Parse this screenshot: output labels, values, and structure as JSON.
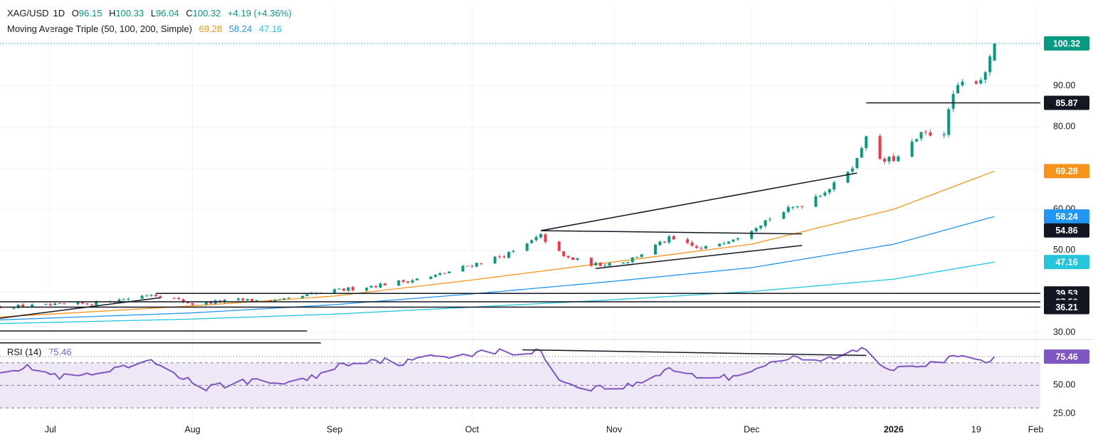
{
  "header": {
    "symbol": "XAG/USD",
    "interval": "1D",
    "open_label": "O",
    "open": "96.15",
    "high_label": "H",
    "high": "100.33",
    "low_label": "L",
    "low": "96.04",
    "close_label": "C",
    "close": "100.32",
    "change": "+4.19 (+4.36%)"
  },
  "ma_legend": {
    "name": "Moving Average Triple (50, 100, 200, Simple)",
    "ma50": "69.28",
    "ma100": "58.24",
    "ma200": "47.16"
  },
  "rsi_legend": {
    "name": "RSI (14)",
    "value": "75.46"
  },
  "colors": {
    "up": "#089981",
    "down": "#f23645",
    "ma50": "#f7931a",
    "ma100": "#2196f3",
    "ma200": "#26c6da",
    "rsi": "#7e57c2",
    "rsi_band": "#ede7f6",
    "trendline": "#131722",
    "badge_dark": "#131722"
  },
  "chart_data": [
    {
      "type": "candlestick",
      "symbol": "XAG/USD",
      "y_ticks": [
        30,
        40,
        50,
        60,
        70,
        80,
        90,
        100
      ],
      "y_tick_labels": [
        "30.00",
        "40.00",
        "50.00",
        "60.00",
        "70.00",
        "80.00",
        "90.00",
        "100.00"
      ],
      "y_ticks_shown": [
        "30.00",
        "50.00",
        "60.00",
        "80.00",
        "90.00"
      ],
      "ylim": [
        28.5,
        109.5
      ],
      "x_labels": [
        "Jul",
        "Aug",
        "Sep",
        "Oct",
        "Nov",
        "Dec",
        "2026",
        "19",
        "Feb"
      ],
      "x_label_dates": [
        "2025-07-01",
        "2025-08-01",
        "2025-09-01",
        "2025-10-01",
        "2025-11-01",
        "2025-12-01",
        "2026-01-01",
        "2026-01-19",
        "2026-02-01"
      ],
      "xlim": [
        "2025-06-20",
        "2026-02-02"
      ],
      "price_series": [
        [
          "2025-06-20",
          36.3
        ],
        [
          "2025-07-01",
          36.6
        ],
        [
          "2025-07-10",
          37.1
        ],
        [
          "2025-07-18",
          38.3
        ],
        [
          "2025-07-23",
          39.4
        ],
        [
          "2025-07-28",
          38.2
        ],
        [
          "2025-08-01",
          37.0
        ],
        [
          "2025-08-11",
          37.9
        ],
        [
          "2025-08-20",
          37.7
        ],
        [
          "2025-08-29",
          39.7
        ],
        [
          "2025-09-10",
          41.5
        ],
        [
          "2025-09-22",
          43.5
        ],
        [
          "2025-10-01",
          46.5
        ],
        [
          "2025-10-10",
          49.5
        ],
        [
          "2025-10-16",
          53.5
        ],
        [
          "2025-10-21",
          48.4
        ],
        [
          "2025-10-28",
          46.5
        ],
        [
          "2025-11-04",
          47.5
        ],
        [
          "2025-11-13",
          52.8
        ],
        [
          "2025-11-20",
          50.2
        ],
        [
          "2025-11-28",
          53.5
        ],
        [
          "2025-12-05",
          57.9
        ],
        [
          "2025-12-12",
          61.3
        ],
        [
          "2025-12-19",
          65.8
        ],
        [
          "2025-12-24",
          72.0
        ],
        [
          "2025-12-26",
          78.5
        ],
        [
          "2025-12-29",
          71.5
        ],
        [
          "2026-01-02",
          72.5
        ],
        [
          "2026-01-07",
          78.0
        ],
        [
          "2026-01-12",
          79.0
        ],
        [
          "2026-01-14",
          88.0
        ],
        [
          "2026-01-16",
          90.5
        ],
        [
          "2026-01-20",
          91.8
        ],
        [
          "2026-01-22",
          96.1
        ],
        [
          "2026-01-23",
          100.32
        ]
      ],
      "last_bar": {
        "open": 96.15,
        "high": 100.33,
        "low": 96.04,
        "close": 100.32
      },
      "series": [
        {
          "name": "SMA 50",
          "values": [
            [
              "2025-06-20",
              33.8
            ],
            [
              "2025-08-01",
              36.5
            ],
            [
              "2025-09-01",
              38.9
            ],
            [
              "2025-10-01",
              42.8
            ],
            [
              "2025-11-01",
              47.2
            ],
            [
              "2025-12-01",
              51.5
            ],
            [
              "2026-01-01",
              60.0
            ],
            [
              "2026-01-23",
              69.28
            ]
          ]
        },
        {
          "name": "SMA 100",
          "values": [
            [
              "2025-06-20",
              33.1
            ],
            [
              "2025-08-01",
              34.8
            ],
            [
              "2025-09-01",
              36.8
            ],
            [
              "2025-10-01",
              39.4
            ],
            [
              "2025-11-01",
              42.5
            ],
            [
              "2025-12-01",
              45.8
            ],
            [
              "2026-01-01",
              51.5
            ],
            [
              "2026-01-23",
              58.24
            ]
          ]
        },
        {
          "name": "SMA 200",
          "values": [
            [
              "2025-06-20",
              32.2
            ],
            [
              "2025-08-01",
              33.3
            ],
            [
              "2025-09-01",
              34.5
            ],
            [
              "2025-10-01",
              36.2
            ],
            [
              "2025-11-01",
              38.0
            ],
            [
              "2025-12-01",
              40.0
            ],
            [
              "2026-01-01",
              43.0
            ],
            [
              "2026-01-23",
              47.16
            ]
          ]
        }
      ],
      "price_labels": [
        {
          "label": "100.32",
          "value": 100.32,
          "role": "last price"
        },
        {
          "label": "85.87",
          "value": 85.87,
          "role": "horizontal level"
        },
        {
          "label": "69.28",
          "value": 69.28,
          "role": "SMA 50"
        },
        {
          "label": "58.24",
          "value": 58.24,
          "role": "SMA 100"
        },
        {
          "label": "54.86",
          "value": 54.86,
          "role": "horizontal level"
        },
        {
          "label": "47.16",
          "value": 47.16,
          "role": "SMA 200"
        },
        {
          "label": "39.53",
          "value": 39.53,
          "role": "horizontal level"
        },
        {
          "label": "37.50",
          "value": 37.5,
          "role": "horizontal level"
        },
        {
          "label": "36.21",
          "value": 36.21,
          "role": "horizontal level"
        }
      ],
      "annotations": [
        {
          "type": "line",
          "from": [
            "2025-10-16",
            54.8
          ],
          "to": [
            "2025-12-24",
            68.8
          ]
        },
        {
          "type": "line",
          "from": [
            "2025-10-16",
            54.8
          ],
          "to": [
            "2025-12-12",
            54.0
          ]
        },
        {
          "type": "line",
          "from": [
            "2025-10-28",
            45.6
          ],
          "to": [
            "2025-12-12",
            51.2
          ]
        },
        {
          "type": "line",
          "from": [
            "2025-12-26",
            85.87
          ],
          "to": [
            "2026-02-02",
            85.87
          ]
        },
        {
          "type": "line",
          "from": [
            "2025-07-24",
            39.53
          ],
          "to": [
            "2026-02-02",
            39.53
          ]
        },
        {
          "type": "line",
          "from": [
            "2025-06-20",
            37.5
          ],
          "to": [
            "2026-02-02",
            37.5
          ]
        },
        {
          "type": "line",
          "from": [
            "2025-06-20",
            36.21
          ],
          "to": [
            "2026-02-02",
            36.21
          ]
        },
        {
          "type": "line",
          "from": [
            "2025-06-20",
            33.5
          ],
          "to": [
            "2025-07-25",
            38.5
          ]
        },
        {
          "type": "line",
          "from": [
            "2025-06-20",
            30.4
          ],
          "to": [
            "2025-08-26",
            30.4
          ]
        },
        {
          "type": "line",
          "from": [
            "2025-06-20",
            27.5
          ],
          "to": [
            "2025-08-29",
            27.5
          ]
        }
      ]
    },
    {
      "type": "line",
      "name": "RSI (14)",
      "y_ticks": [
        25,
        50,
        75
      ],
      "y_tick_labels": [
        "25.00",
        "50.00"
      ],
      "overbought": 70,
      "middle": 50,
      "oversold": 30,
      "ylim": [
        20,
        90
      ],
      "last_value": 75.46,
      "values": [
        [
          "2025-06-20",
          64
        ],
        [
          "2025-06-27",
          66
        ],
        [
          "2025-07-03",
          57
        ],
        [
          "2025-07-10",
          59
        ],
        [
          "2025-07-16",
          64
        ],
        [
          "2025-07-22",
          71
        ],
        [
          "2025-07-25",
          68
        ],
        [
          "2025-07-30",
          57
        ],
        [
          "2025-08-04",
          47
        ],
        [
          "2025-08-12",
          54
        ],
        [
          "2025-08-19",
          52
        ],
        [
          "2025-08-26",
          55
        ],
        [
          "2025-09-02",
          68
        ],
        [
          "2025-09-09",
          73
        ],
        [
          "2025-09-16",
          70
        ],
        [
          "2025-09-23",
          76
        ],
        [
          "2025-09-30",
          78
        ],
        [
          "2025-10-06",
          80
        ],
        [
          "2025-10-12",
          78
        ],
        [
          "2025-10-16",
          80
        ],
        [
          "2025-10-21",
          52
        ],
        [
          "2025-10-27",
          48
        ],
        [
          "2025-11-02",
          48
        ],
        [
          "2025-11-08",
          53
        ],
        [
          "2025-11-13",
          66
        ],
        [
          "2025-11-19",
          58
        ],
        [
          "2025-11-26",
          57
        ],
        [
          "2025-12-02",
          66
        ],
        [
          "2025-12-09",
          74
        ],
        [
          "2025-12-15",
          71
        ],
        [
          "2025-12-21",
          77
        ],
        [
          "2025-12-26",
          83
        ],
        [
          "2025-12-30",
          65
        ],
        [
          "2026-01-05",
          68
        ],
        [
          "2026-01-12",
          72
        ],
        [
          "2026-01-16",
          76
        ],
        [
          "2026-01-20",
          70
        ],
        [
          "2026-01-23",
          75.46
        ]
      ],
      "annotations": [
        {
          "type": "line",
          "from": [
            "2025-10-12",
            81.5
          ],
          "to": [
            "2025-12-26",
            76.5
          ]
        }
      ]
    }
  ]
}
